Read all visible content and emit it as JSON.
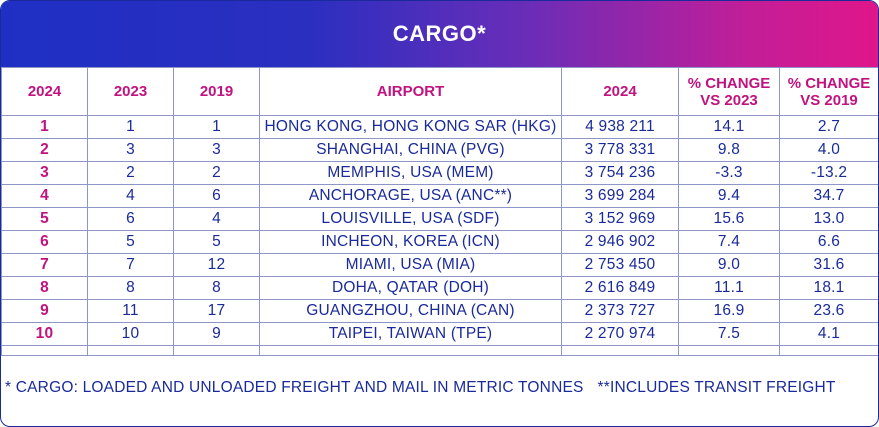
{
  "banner": {
    "title": "CARGO*"
  },
  "table": {
    "headers": {
      "rank_2024": "2024",
      "rank_2023": "2023",
      "rank_2019": "2019",
      "airport": "AIRPORT",
      "volume_2024": "2024",
      "change_2023": "% CHANGE VS 2023",
      "change_2019": "% CHANGE VS 2019"
    },
    "rows": [
      {
        "rank_2024": "1",
        "rank_2023": "1",
        "rank_2019": "1",
        "airport": "HONG KONG, HONG KONG SAR (HKG)",
        "volume_2024": "4 938 211",
        "change_2023": "14.1",
        "change_2019": "2.7"
      },
      {
        "rank_2024": "2",
        "rank_2023": "3",
        "rank_2019": "3",
        "airport": "SHANGHAI, CHINA (PVG)",
        "volume_2024": "3 778 331",
        "change_2023": "9.8",
        "change_2019": "4.0"
      },
      {
        "rank_2024": "3",
        "rank_2023": "2",
        "rank_2019": "2",
        "airport": "MEMPHIS, USA (MEM)",
        "volume_2024": "3 754 236",
        "change_2023": "-3.3",
        "change_2019": "-13.2"
      },
      {
        "rank_2024": "4",
        "rank_2023": "4",
        "rank_2019": "6",
        "airport": "ANCHORAGE, USA (ANC**)",
        "volume_2024": "3 699 284",
        "change_2023": "9.4",
        "change_2019": "34.7"
      },
      {
        "rank_2024": "5",
        "rank_2023": "6",
        "rank_2019": "4",
        "airport": "LOUISVILLE, USA (SDF)",
        "volume_2024": "3 152 969",
        "change_2023": "15.6",
        "change_2019": "13.0"
      },
      {
        "rank_2024": "6",
        "rank_2023": "5",
        "rank_2019": "5",
        "airport": "INCHEON, KOREA (ICN)",
        "volume_2024": "2 946 902",
        "change_2023": "7.4",
        "change_2019": "6.6"
      },
      {
        "rank_2024": "7",
        "rank_2023": "7",
        "rank_2019": "12",
        "airport": "MIAMI, USA (MIA)",
        "volume_2024": "2 753 450",
        "change_2023": "9.0",
        "change_2019": "31.6"
      },
      {
        "rank_2024": "8",
        "rank_2023": "8",
        "rank_2019": "8",
        "airport": "DOHA, QATAR (DOH)",
        "volume_2024": "2 616 849",
        "change_2023": "11.1",
        "change_2019": "18.1"
      },
      {
        "rank_2024": "9",
        "rank_2023": "11",
        "rank_2019": "17",
        "airport": "GUANGZHOU, CHINA (CAN)",
        "volume_2024": "2 373 727",
        "change_2023": "16.9",
        "change_2019": "23.6"
      },
      {
        "rank_2024": "10",
        "rank_2023": "10",
        "rank_2019": "9",
        "airport": "TAIPEI, TAIWAN (TPE)",
        "volume_2024": "2 270 974",
        "change_2023": "7.5",
        "change_2019": "4.1"
      }
    ]
  },
  "footnotes": {
    "cargo": "* CARGO: LOADED AND UNLOADED FREIGHT AND MAIL IN METRIC TONNES",
    "transit": "**INCLUDES TRANSIT FREIGHT"
  },
  "colors": {
    "banner_start": "#1f2fc4",
    "banner_end": "#e0168a",
    "header_text": "#c0137f",
    "body_text": "#1a2a9a",
    "grid": "#8e96c8"
  }
}
